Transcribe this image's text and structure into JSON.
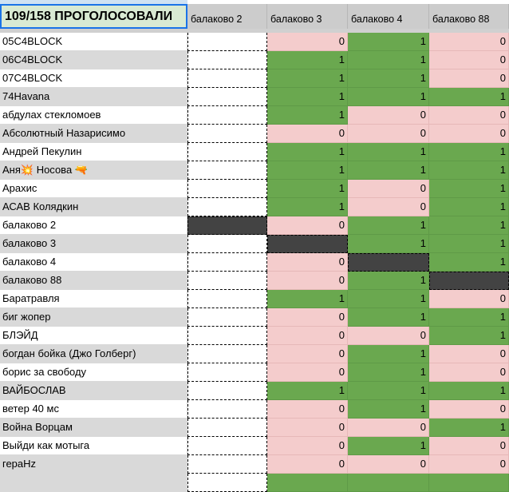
{
  "header": {
    "a1": "109/158 ПРОГОЛОСОВАЛИ",
    "columns": [
      "балаково 2",
      "балаково 3",
      "балаково 4",
      "балаково 88"
    ]
  },
  "colors": {
    "yes": "#6aa84f",
    "no": "#f4cccc",
    "self": "#434343",
    "selected_border": "#1a73e8"
  },
  "rows": [
    {
      "name": "05C4BLOCK",
      "b": null,
      "c": "0",
      "d": "1",
      "e": "0"
    },
    {
      "name": "06C4BLOCK",
      "b": null,
      "c": "1",
      "d": "1",
      "e": "0"
    },
    {
      "name": "07C4BLOCK",
      "b": null,
      "c": "1",
      "d": "1",
      "e": "0"
    },
    {
      "name": "74Havana",
      "b": null,
      "c": "1",
      "d": "1",
      "e": "1"
    },
    {
      "name": "абдулах стекломоев",
      "b": null,
      "c": "1",
      "d": "0",
      "e": "0"
    },
    {
      "name": "Абсолютный Назарисимо",
      "b": null,
      "c": "0",
      "d": "0",
      "e": "0"
    },
    {
      "name": "Андрей Пекулин",
      "b": null,
      "c": "1",
      "d": "1",
      "e": "1"
    },
    {
      "name": "Аня💥 Носова 🔫",
      "b": null,
      "c": "1",
      "d": "1",
      "e": "1"
    },
    {
      "name": "Арахис",
      "b": null,
      "c": "1",
      "d": "0",
      "e": "1"
    },
    {
      "name": "АСАВ Колядкин",
      "b": null,
      "c": "1",
      "d": "0",
      "e": "1"
    },
    {
      "name": "балаково 2",
      "b": "self",
      "c": "0",
      "d": "1",
      "e": "1"
    },
    {
      "name": "балаково 3",
      "b": null,
      "c": "self",
      "d": "1",
      "e": "1"
    },
    {
      "name": "балаково 4",
      "b": null,
      "c": "0",
      "d": "self",
      "e": "1"
    },
    {
      "name": "балаково 88",
      "b": null,
      "c": "0",
      "d": "1",
      "e": "self"
    },
    {
      "name": "Баратравля",
      "b": null,
      "c": "1",
      "d": "1",
      "e": "0"
    },
    {
      "name": "биг жопер",
      "b": null,
      "c": "0",
      "d": "1",
      "e": "1"
    },
    {
      "name": "БЛЭЙД",
      "b": null,
      "c": "0",
      "d": "0",
      "e": "1"
    },
    {
      "name": "богдан бойка (Джо Голберг)",
      "b": null,
      "c": "0",
      "d": "1",
      "e": "0"
    },
    {
      "name": "борис за свободу",
      "b": null,
      "c": "0",
      "d": "1",
      "e": "0"
    },
    {
      "name": "ВАЙБОСЛАВ",
      "b": null,
      "c": "1",
      "d": "1",
      "e": "1"
    },
    {
      "name": "ветер 40 мс",
      "b": null,
      "c": "0",
      "d": "1",
      "e": "0"
    },
    {
      "name": "Война Ворцам",
      "b": null,
      "c": "0",
      "d": "0",
      "e": "1"
    },
    {
      "name": "Выйди как мотыга",
      "b": null,
      "c": "0",
      "d": "1",
      "e": "0"
    },
    {
      "name": "гераHz",
      "b": null,
      "c": "0",
      "d": "0",
      "e": "0"
    }
  ]
}
